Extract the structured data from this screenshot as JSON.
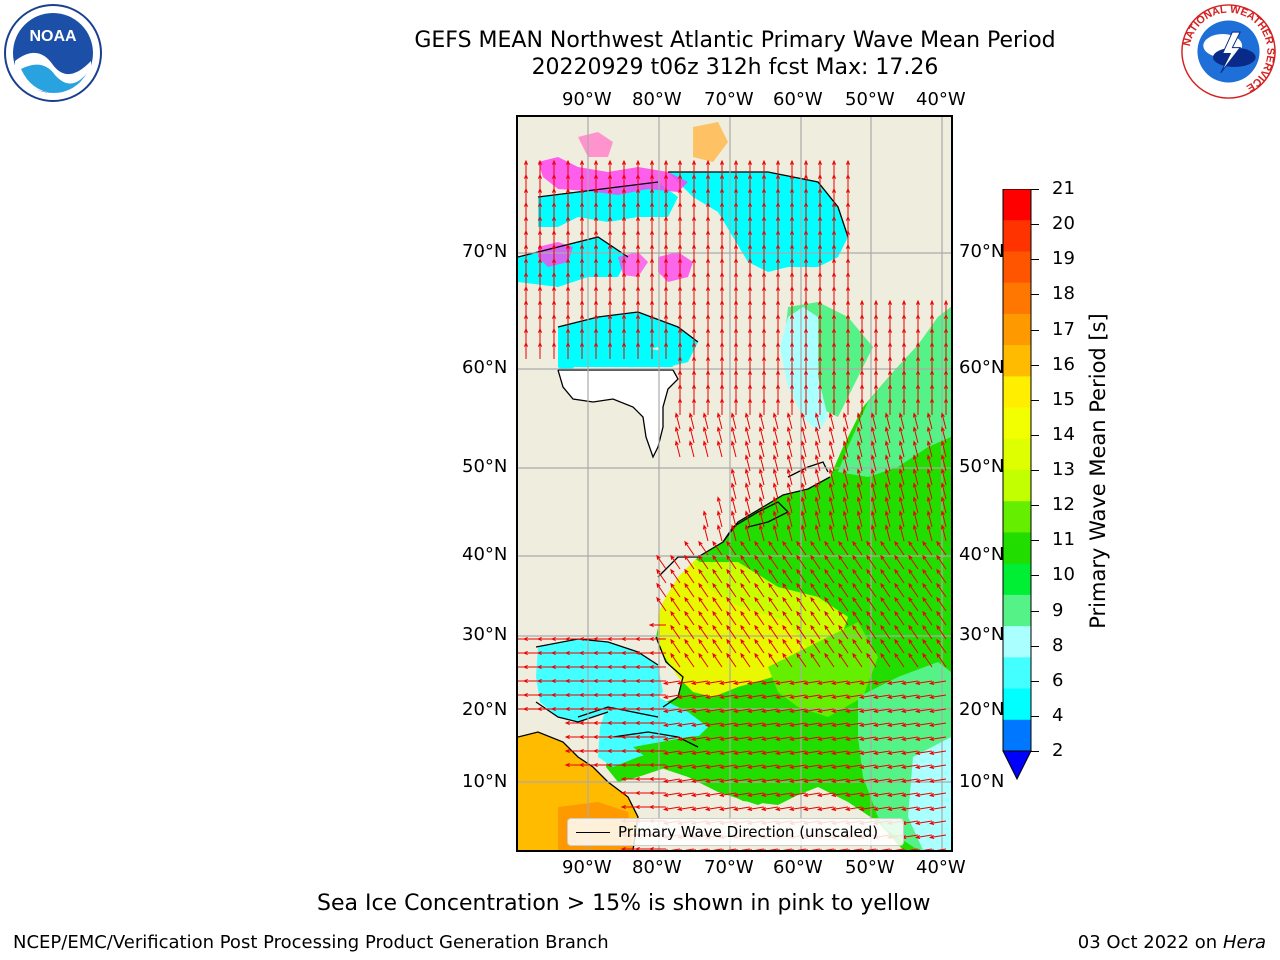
{
  "title_line1": "GEFS MEAN Northwest Atlantic Primary Wave Mean Period",
  "title_line2": "20220929 t06z 312h fcst   Max: 17.26",
  "lon_ticks": [
    "90°W",
    "80°W",
    "70°W",
    "60°W",
    "50°W",
    "40°W"
  ],
  "lat_ticks": [
    "70°N",
    "60°N",
    "50°N",
    "40°N",
    "30°N",
    "20°N",
    "10°N"
  ],
  "colorbar": {
    "label": "Primary Wave Mean Period [s]",
    "ticks": [
      "21",
      "20",
      "19",
      "18",
      "17",
      "16",
      "15",
      "14",
      "13",
      "12",
      "11",
      "10",
      "9",
      "8",
      "6",
      "4",
      "2"
    ],
    "colors": [
      "#ff0000",
      "#ff3300",
      "#ff5500",
      "#ff7700",
      "#ff9900",
      "#ffbb00",
      "#ffee00",
      "#f2ff00",
      "#ddff00",
      "#c2ff00",
      "#66ee00",
      "#22dd00",
      "#00ee33",
      "#55f288",
      "#aaffff",
      "#44ffff",
      "#00ffff",
      "#0077ff"
    ],
    "extend_color": "#0000ff"
  },
  "legend": {
    "label": "Primary Wave Direction (unscaled)"
  },
  "caption": "Sea Ice Concentration > 15% is shown in pink to yellow",
  "footer_left": "NCEP/EMC/Verification Post Processing Product Generation Branch",
  "footer_right_date": "03 Oct 2022 on ",
  "footer_right_host": "Hera",
  "logos": {
    "left": "NOAA",
    "right": "NATIONAL WEATHER SERVICE"
  }
}
